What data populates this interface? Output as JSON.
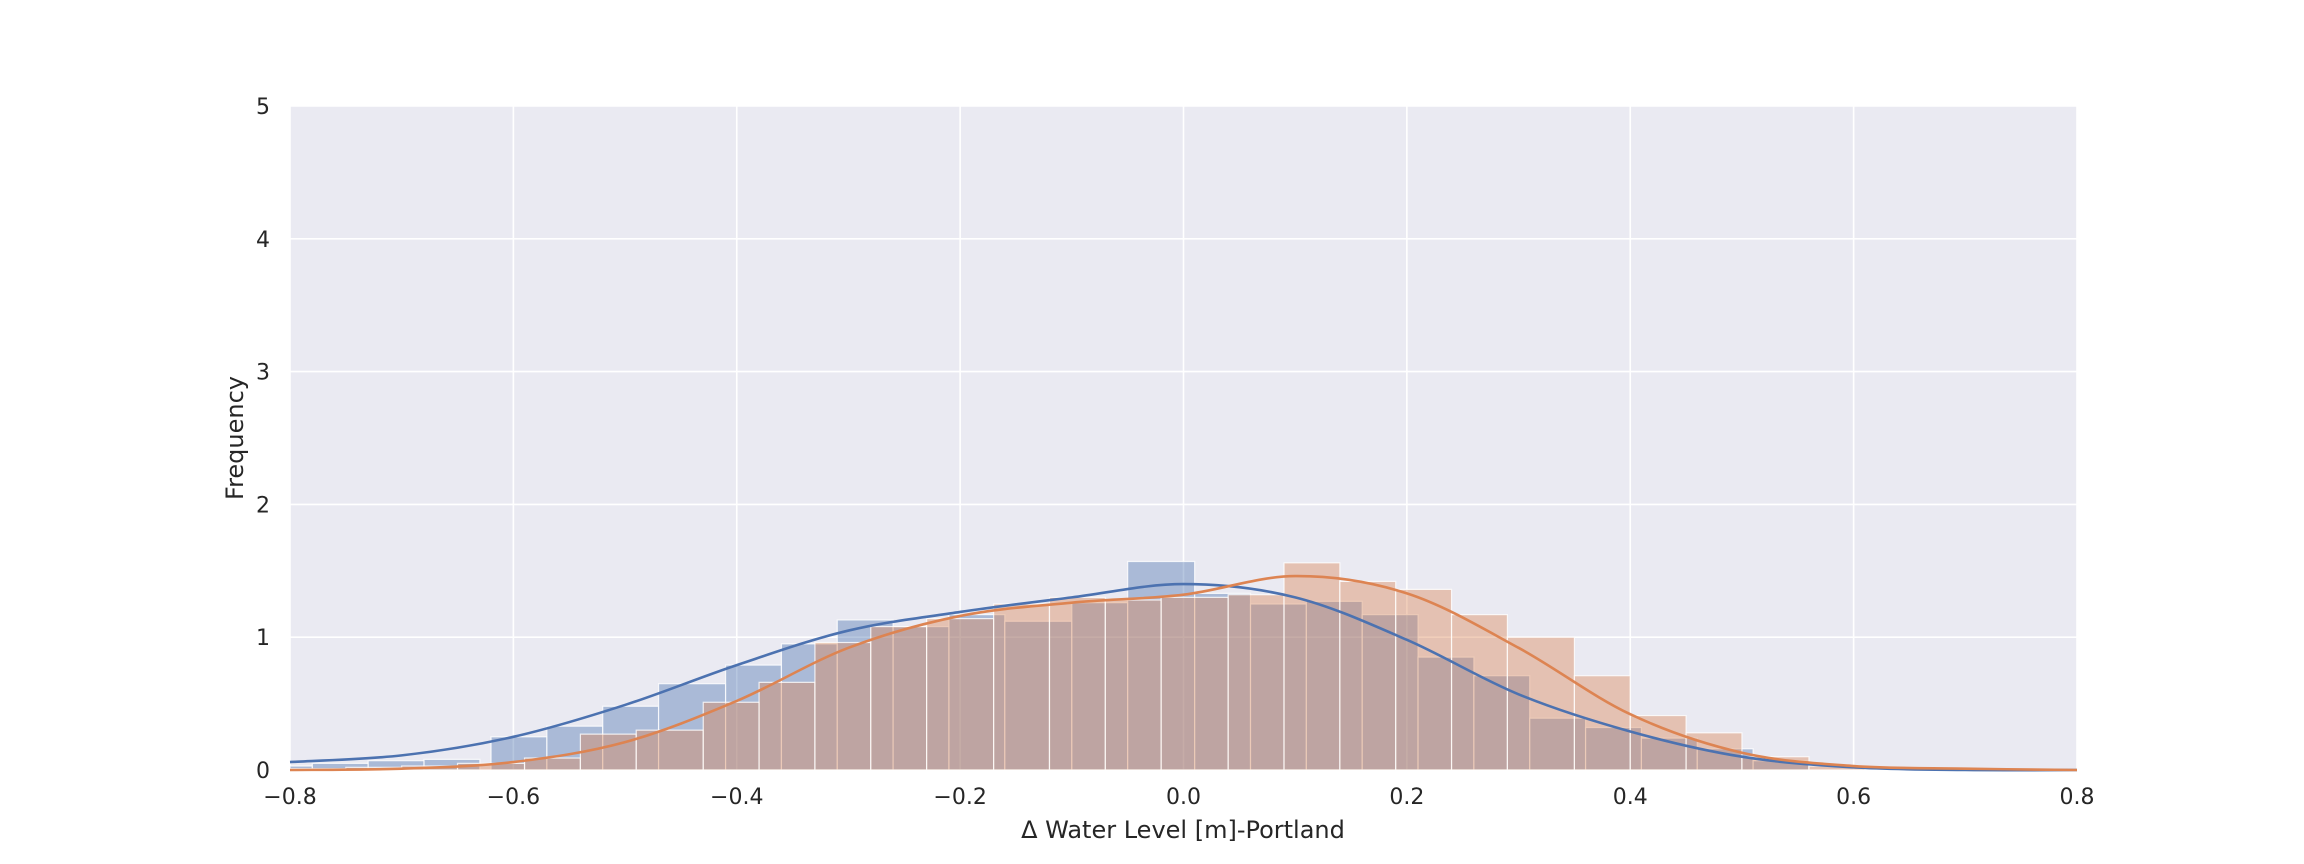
{
  "chart_data": {
    "type": "histogram",
    "title": "",
    "xlabel": "Δ Water Level [m]-Portland",
    "ylabel": "Frequency",
    "xlim": [
      -0.8,
      0.8
    ],
    "ylim": [
      0,
      5
    ],
    "x_ticks": [
      "−0.8",
      "−0.6",
      "−0.4",
      "−0.2",
      "0.0",
      "0.2",
      "0.4",
      "0.6",
      "0.8"
    ],
    "y_ticks": [
      "0",
      "1",
      "2",
      "3",
      "4",
      "5"
    ],
    "x_tick_values": [
      -0.8,
      -0.6,
      -0.4,
      -0.2,
      0.0,
      0.2,
      0.4,
      0.6,
      0.8
    ],
    "y_tick_values": [
      0,
      1,
      2,
      3,
      4,
      5
    ],
    "grid": true,
    "background": "#eaeaf2",
    "series": [
      {
        "color": "#4c72b0",
        "hist_bins": [
          [
            -0.8,
            -0.78,
            0.03
          ],
          [
            -0.78,
            -0.73,
            0.05
          ],
          [
            -0.73,
            -0.68,
            0.07
          ],
          [
            -0.68,
            -0.63,
            0.08
          ],
          [
            -0.62,
            -0.57,
            0.25
          ],
          [
            -0.57,
            -0.52,
            0.33
          ],
          [
            -0.52,
            -0.47,
            0.48
          ],
          [
            -0.47,
            -0.41,
            0.65
          ],
          [
            -0.41,
            -0.36,
            0.79
          ],
          [
            -0.36,
            -0.31,
            0.95
          ],
          [
            -0.31,
            -0.26,
            1.13
          ],
          [
            -0.26,
            -0.21,
            1.08
          ],
          [
            -0.21,
            -0.16,
            1.17
          ],
          [
            -0.16,
            -0.1,
            1.12
          ],
          [
            -0.1,
            -0.05,
            1.26
          ],
          [
            -0.05,
            0.01,
            1.57
          ],
          [
            0.01,
            0.06,
            1.33
          ],
          [
            0.06,
            0.11,
            1.25
          ],
          [
            0.11,
            0.16,
            1.27
          ],
          [
            0.16,
            0.21,
            1.17
          ],
          [
            0.21,
            0.26,
            0.85
          ],
          [
            0.26,
            0.31,
            0.71
          ],
          [
            0.31,
            0.36,
            0.39
          ],
          [
            0.36,
            0.41,
            0.32
          ],
          [
            0.41,
            0.46,
            0.24
          ],
          [
            0.46,
            0.51,
            0.16
          ],
          [
            0.51,
            0.56,
            0.07
          ]
        ],
        "kde_x": [
          -0.8,
          -0.7,
          -0.6,
          -0.5,
          -0.4,
          -0.3,
          -0.2,
          -0.1,
          0.0,
          0.1,
          0.2,
          0.3,
          0.4,
          0.5,
          0.6,
          0.7,
          0.8
        ],
        "kde_y": [
          0.06,
          0.11,
          0.25,
          0.49,
          0.79,
          1.05,
          1.19,
          1.3,
          1.4,
          1.3,
          0.98,
          0.57,
          0.29,
          0.1,
          0.02,
          0.0,
          0.0
        ]
      },
      {
        "color": "#dd8452",
        "hist_bins": [
          [
            -0.8,
            -0.75,
            0.01
          ],
          [
            -0.75,
            -0.7,
            0.02
          ],
          [
            -0.7,
            -0.65,
            0.03
          ],
          [
            -0.65,
            -0.59,
            0.05
          ],
          [
            -0.59,
            -0.54,
            0.09
          ],
          [
            -0.54,
            -0.49,
            0.27
          ],
          [
            -0.49,
            -0.43,
            0.3
          ],
          [
            -0.43,
            -0.38,
            0.51
          ],
          [
            -0.38,
            -0.33,
            0.66
          ],
          [
            -0.33,
            -0.28,
            0.96
          ],
          [
            -0.28,
            -0.23,
            1.08
          ],
          [
            -0.23,
            -0.17,
            1.14
          ],
          [
            -0.17,
            -0.12,
            1.25
          ],
          [
            -0.12,
            -0.07,
            1.3
          ],
          [
            -0.07,
            -0.02,
            1.28
          ],
          [
            -0.02,
            0.04,
            1.3
          ],
          [
            0.04,
            0.09,
            1.32
          ],
          [
            0.09,
            0.14,
            1.56
          ],
          [
            0.14,
            0.19,
            1.42
          ],
          [
            0.19,
            0.24,
            1.36
          ],
          [
            0.24,
            0.29,
            1.17
          ],
          [
            0.29,
            0.35,
            1.0
          ],
          [
            0.35,
            0.4,
            0.71
          ],
          [
            0.4,
            0.45,
            0.41
          ],
          [
            0.45,
            0.5,
            0.28
          ],
          [
            0.5,
            0.56,
            0.1
          ],
          [
            0.56,
            0.61,
            0.03
          ]
        ],
        "kde_x": [
          -0.8,
          -0.7,
          -0.6,
          -0.5,
          -0.4,
          -0.3,
          -0.2,
          -0.1,
          0.0,
          0.1,
          0.2,
          0.3,
          0.4,
          0.5,
          0.6,
          0.7,
          0.8
        ],
        "kde_y": [
          0.0,
          0.01,
          0.06,
          0.21,
          0.52,
          0.92,
          1.16,
          1.26,
          1.32,
          1.46,
          1.33,
          0.92,
          0.42,
          0.13,
          0.03,
          0.01,
          0.0
        ]
      }
    ]
  }
}
